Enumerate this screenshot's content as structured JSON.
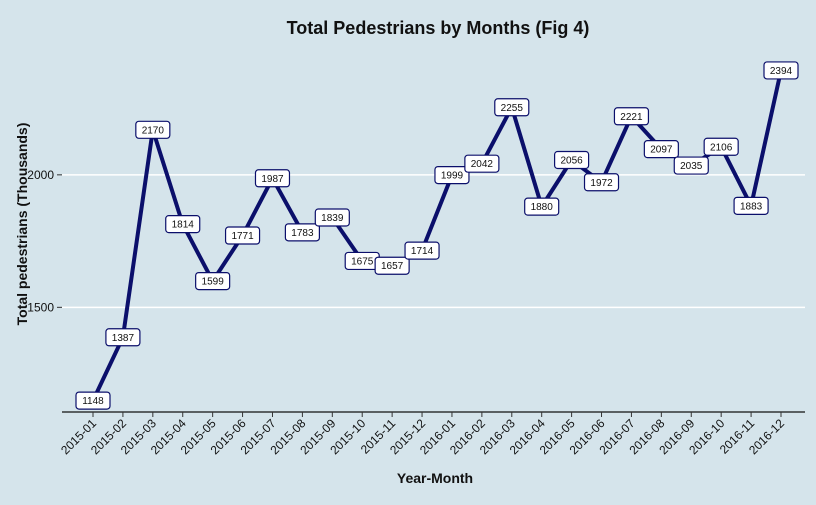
{
  "chart_data": {
    "type": "line",
    "title": "Total Pedestrians by Months (Fig 4)",
    "xlabel": "Year-Month",
    "ylabel": "Total pedestrians (Thousands)",
    "categories": [
      "2015-01",
      "2015-02",
      "2015-03",
      "2015-04",
      "2015-05",
      "2015-06",
      "2015-07",
      "2015-08",
      "2015-09",
      "2015-10",
      "2015-11",
      "2015-12",
      "2016-01",
      "2016-02",
      "2016-03",
      "2016-04",
      "2016-05",
      "2016-06",
      "2016-07",
      "2016-08",
      "2016-09",
      "2016-10",
      "2016-11",
      "2016-12"
    ],
    "values": [
      1148,
      1387,
      2170,
      1814,
      1599,
      1771,
      1987,
      1783,
      1839,
      1675,
      1657,
      1714,
      1999,
      2042,
      2255,
      1880,
      2056,
      1972,
      2221,
      2097,
      2035,
      2106,
      1883,
      2394
    ],
    "data_labels": [
      "1148",
      "1387",
      "2170",
      "1814",
      "1599",
      "1771",
      "1987",
      "1783",
      "1839",
      "1675",
      "1657",
      "1714",
      "1999",
      "2042",
      "2255",
      "1880",
      "2056",
      "1972",
      "2221",
      "2097",
      "2035",
      "2106",
      "1883",
      "2394"
    ],
    "y_ticks": [
      1500,
      2000
    ],
    "y_tick_labels": [
      "1500",
      "2000"
    ],
    "ylim": [
      1105,
      2490
    ],
    "grid": true,
    "legend": "none",
    "colors": {
      "line": "#0b0f6b",
      "background": "#d5e4eb",
      "gridline": "#ffffff",
      "label_box_fill": "#ffffff",
      "label_box_border": "#0b0f6b"
    }
  }
}
